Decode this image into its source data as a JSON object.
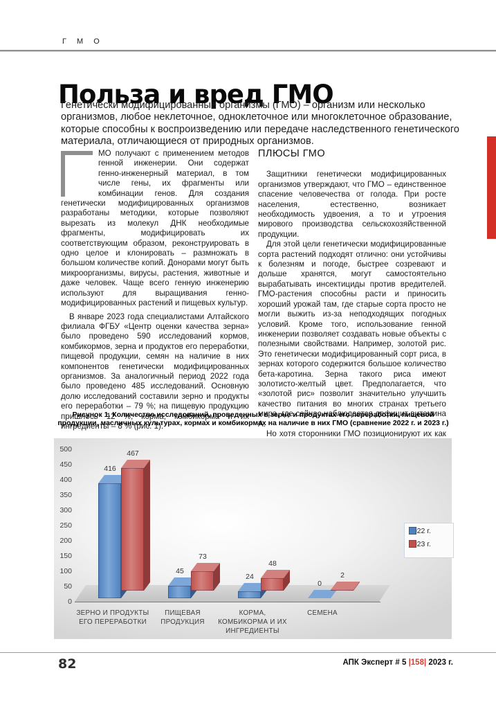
{
  "header": {
    "section_label": "Г М О"
  },
  "article": {
    "title": "Польза и вред ГМО",
    "intro": "Генетически модифицированные организмы (ГМО) – организм или несколько организмов, любое неклеточное, одноклеточное или многоклеточное образование, которые способны к воспроизведению или передаче наследственного генетического материала, отличающиеся от природных организмов."
  },
  "left_column": {
    "dropcap_letter": "Г",
    "para1": "МО получают с применением методов генной инженерии. Они содержат генно-инженерный материал, в том числе гены, их фрагменты или комбинации генов. Для создания генетически модифицированных организмов разработаны методики, которые позволяют вырезать из молекул ДНК необходимые фрагменты, модифицировать их соответствующим образом, реконструировать в одно целое и клонировать – размножать в большом количестве копий. Донорами могут быть микроорганизмы, вирусы, растения, животные и даже человек. Чаще всего генную инженерию используют для выращивания генно-модифицированных растений и пищевых культур.",
    "para2": "В январе 2023 года специалистами Алтайского филиала ФГБУ «Центр оценки качества зерна» было проведено 590 исследований кормов, комбикормов, зерна и продуктов его переработки, пищевой продукции, семян на наличие в них компонентов генетически модифицированных организмов. За аналогичный период 2022 года было проведено 485 исследований. Основную долю исследований составили зерно и продукты его переработки – 79 %; на пищевую продукцию пришлось 12 %; корма, комбикорма и их ингредиенты – 8 % (рис. 1)."
  },
  "right_column": {
    "heading": "ПЛЮСЫ ГМО",
    "para1": "Защитники генетически модифицированных организмов утверждают, что ГМО – единственное спасение человечества от голода. При росте населения, естественно, возникает необходимость удвоения, а то и утроения мирового производства сельскохозяйственной продукции.",
    "para2": "Для этой цели генетически модифицированные сорта растений подходят отлично: они устойчивы к болезням и погоде, быстрее созревают и дольше хранятся, могут самостоятельно вырабатывать инсектициды против вредителей. ГМО-растения способны расти и приносить хороший урожай там, где старые сорта просто не могли выжить из-за неподходящих погодных условий. Кроме того, использование генной инженерии позволяет создавать новые объекты с полезными свойствами. Например, золотой рис. Это генетически модифицированный сорт риса, в зернах которого содержится большое количество бета-каротина. Зерна такого риса имеют золотисто-желтый цвет. Предполагается, что «золотой рис» позволит значительно улучшить качество питания во многих странах третьего мира, где сейчас наблюдается дефицит витамина А.",
    "para3": "Но хотя сторонники ГМО позиционируют их как панацею от голода для спасения африканских и азиатских"
  },
  "figure": {
    "caption": "Рисунок 1. Количество исследований, проведенных в зерне и продуктах его переработки, пищевой продукции, масличных культурах, кормах и комбикормах на наличие в них ГМО (сравнение 2022 г. и 2023 г.)"
  },
  "chart_data": {
    "type": "bar",
    "style": "3d-clustered",
    "title": "",
    "categories": [
      "ЗЕРНО И ПРОДУКТЫ\nЕГО ПЕРЕРАБОТКИ",
      "ПИЩЕВАЯ\nПРОДУКЦИЯ",
      "КОРМА,\nКОМБИКОРМА И ИХ\nИНГРЕДИЕНТЫ",
      "СЕМЕНА"
    ],
    "series": [
      {
        "name": "2022 г.",
        "values": [
          416,
          45,
          24,
          0
        ],
        "color": "#4f81bd",
        "color_top": "#7da7d8",
        "color_side": "#35598a"
      },
      {
        "name": "2023 г.",
        "values": [
          467,
          73,
          48,
          2
        ],
        "color": "#c0504d",
        "color_top": "#d3817e",
        "color_side": "#8e3a38"
      }
    ],
    "xlabel": "",
    "ylabel": "",
    "ylim": [
      0,
      500
    ],
    "ytick_step": 50,
    "grid": false,
    "data_labels": true,
    "legend_position": "right"
  },
  "footer": {
    "page_number": "82",
    "journal_prefix": "АПК Эксперт # 5 ",
    "issue": "|158|",
    "suffix": " 2023 г.",
    "issue_color": "#e23a2e"
  },
  "accents": {
    "red_tab_color": "#d42f26"
  }
}
